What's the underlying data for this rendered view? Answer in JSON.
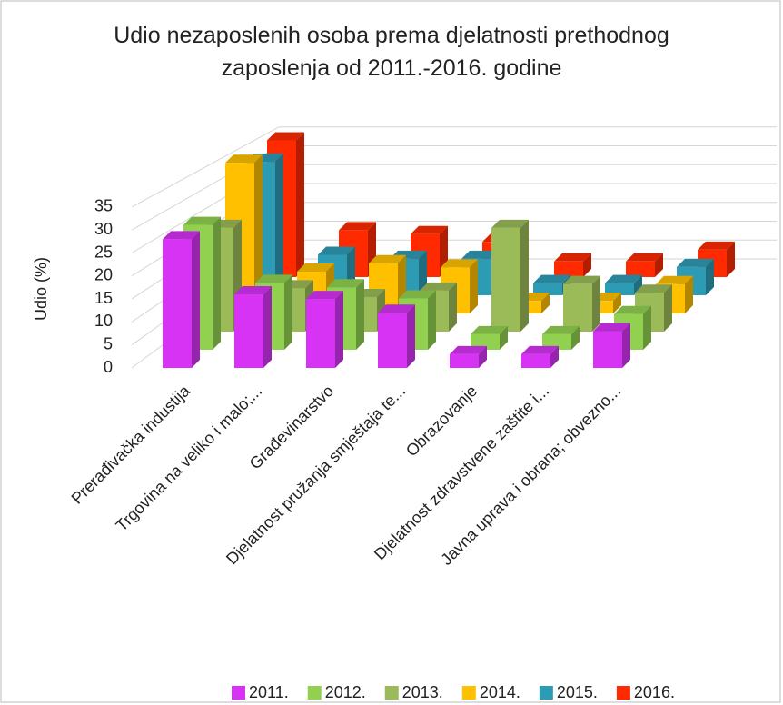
{
  "chart_data": {
    "type": "bar3d",
    "title": "Udio nezaposlenih osoba prema djelatnosti prethodnog zaposlenja od 2011.-2016. godine",
    "y_label": "Udio (%)",
    "categories": [
      "Prerađivačka industija",
      "Trgovina na veliko i malo;...",
      "Građevinarstvo",
      "Djelatnost pružanja smještaja te...",
      "Obrazovanje",
      "Djelatnost zdravstvene zaštite i...",
      "Javna uprava i obrana; obvezno..."
    ],
    "series": [
      {
        "name": "2011.",
        "color": "#d633f5",
        "values": [
          28,
          16,
          15,
          12,
          3,
          3,
          8
        ]
      },
      {
        "name": "2012.",
        "color": "#92d050",
        "values": [
          28,
          15,
          14,
          11.5,
          3.5,
          3.5,
          8
        ]
      },
      {
        "name": "2013.",
        "color": "#9bbb59",
        "values": [
          24,
          10,
          8,
          9.5,
          24,
          11,
          9
        ]
      },
      {
        "name": "2014.",
        "color": "#ffc000",
        "values": [
          36,
          10,
          12,
          11,
          3,
          3,
          7
        ]
      },
      {
        "name": "2015.",
        "color": "#2e9bb5",
        "values": [
          33,
          10,
          9,
          9,
          3,
          3,
          7
        ]
      },
      {
        "name": "2016.",
        "color": "#ff2a00",
        "values": [
          35,
          12,
          11,
          9,
          4,
          4,
          7
        ]
      }
    ],
    "ylim": [
      0,
      35
    ],
    "yticks": [
      0,
      5,
      10,
      15,
      20,
      25,
      30,
      35
    ],
    "grid": true,
    "legend": "bottom"
  }
}
